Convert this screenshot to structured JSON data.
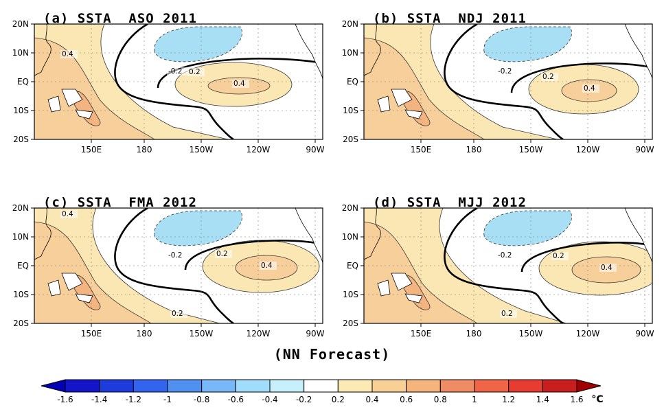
{
  "panels": [
    {
      "title": "(a) SSTA  ASO 2011",
      "dash_label": "-0.2",
      "lab02": "0.2",
      "lab04": "0.4",
      "lab04b": "0.4",
      "lab02s": ""
    },
    {
      "title": "(b) SSTA  NDJ 2011",
      "dash_label": "-0.2",
      "lab02": "0.2",
      "lab04": "0.4",
      "lab04b": "",
      "lab02s": ""
    },
    {
      "title": "(c) SSTA  FMA 2012",
      "dash_label": "-0.2",
      "lab02": "0.2",
      "lab04": "0.4",
      "lab04b": "0.4",
      "lab02s": "0.2"
    },
    {
      "title": "(d) SSTA  MJJ 2012",
      "dash_label": "-0.2",
      "lab02": "0.2",
      "lab04": "0.4",
      "lab04b": "",
      "lab02s": "0.2"
    }
  ],
  "axes": {
    "lat_labels": [
      "20N",
      "10N",
      "EQ",
      "10S",
      "20S"
    ],
    "lon_labels": [
      "150E",
      "180",
      "150W",
      "120W",
      "90W"
    ]
  },
  "footer": "(NN Forecast)",
  "colorbar": {
    "labels": [
      "-1.6",
      "-1.4",
      "-1.2",
      "-1",
      "-0.8",
      "-0.6",
      "-0.4",
      "-0.2",
      "0.2",
      "0.4",
      "0.6",
      "0.8",
      "1",
      "1.2",
      "1.4",
      "1.6"
    ],
    "unit": "°C",
    "colors": [
      "#1414c8",
      "#1e3cdc",
      "#3264f0",
      "#5090f0",
      "#78b8f8",
      "#a0dcfc",
      "#c8f0fc",
      "#ffffff",
      "#fceab4",
      "#f8d096",
      "#f4b47c",
      "#f08c64",
      "#f06448",
      "#e63c32",
      "#c81e1e"
    ],
    "left_tip_color": "#0000b4",
    "right_tip_color": "#a00000"
  }
}
